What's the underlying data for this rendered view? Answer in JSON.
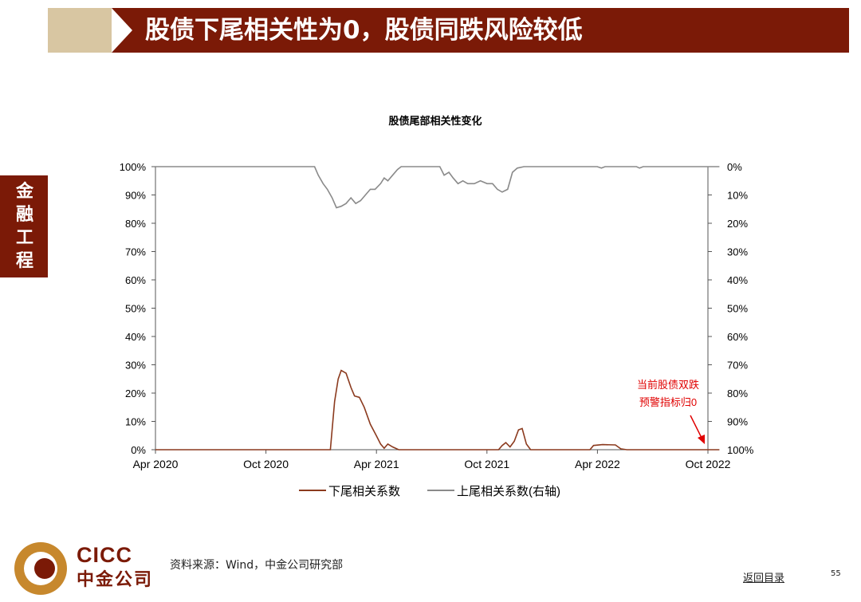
{
  "header": {
    "title": "股债下尾相关性为0，股债同跌风险较低"
  },
  "sidebar": {
    "section": "金融工程"
  },
  "chart_data": {
    "type": "line",
    "title": "股债尾部相关性变化",
    "x_ticks": [
      "Apr 2020",
      "Oct 2020",
      "Apr 2021",
      "Oct 2021",
      "Apr 2022",
      "Oct 2022"
    ],
    "x_range": [
      "2020-04",
      "2022-10"
    ],
    "left_axis": {
      "ticks": [
        "100%",
        "90%",
        "80%",
        "70%",
        "60%",
        "50%",
        "40%",
        "30%",
        "20%",
        "10%",
        "0%"
      ],
      "ylim": [
        0,
        100
      ]
    },
    "right_axis": {
      "ticks": [
        "0%",
        "10%",
        "20%",
        "30%",
        "40%",
        "50%",
        "60%",
        "70%",
        "80%",
        "90%",
        "100%"
      ],
      "ylim": [
        100,
        0
      ],
      "inverted": true
    },
    "legend_position": "bottom",
    "series": [
      {
        "name": "下尾相关系数",
        "axis": "left",
        "color": "#8b3a1e",
        "points": [
          [
            "2020-04-01",
            0
          ],
          [
            "2021-01-15",
            0
          ],
          [
            "2021-01-22",
            17
          ],
          [
            "2021-01-28",
            25
          ],
          [
            "2021-02-02",
            28
          ],
          [
            "2021-02-10",
            27
          ],
          [
            "2021-02-18",
            22
          ],
          [
            "2021-02-24",
            19
          ],
          [
            "2021-03-04",
            18.5
          ],
          [
            "2021-03-12",
            15
          ],
          [
            "2021-03-22",
            9
          ],
          [
            "2021-04-01",
            5
          ],
          [
            "2021-04-08",
            2
          ],
          [
            "2021-04-14",
            0.5
          ],
          [
            "2021-04-20",
            2
          ],
          [
            "2021-04-28",
            1
          ],
          [
            "2021-05-08",
            0
          ],
          [
            "2021-10-20",
            0
          ],
          [
            "2021-10-26",
            1.5
          ],
          [
            "2021-11-01",
            2.5
          ],
          [
            "2021-11-08",
            1
          ],
          [
            "2021-11-15",
            3
          ],
          [
            "2021-11-22",
            7
          ],
          [
            "2021-11-28",
            7.5
          ],
          [
            "2021-12-05",
            2
          ],
          [
            "2021-12-12",
            0
          ],
          [
            "2022-03-20",
            0
          ],
          [
            "2022-03-26",
            1.5
          ],
          [
            "2022-04-10",
            1.8
          ],
          [
            "2022-05-01",
            1.7
          ],
          [
            "2022-05-10",
            0.3
          ],
          [
            "2022-05-20",
            0
          ],
          [
            "2022-10-20",
            0
          ]
        ]
      },
      {
        "name": "上尾相关系数(右轴)",
        "axis": "right",
        "color": "#8a8a8a",
        "points": [
          [
            "2020-04-01",
            0
          ],
          [
            "2020-12-20",
            0
          ],
          [
            "2020-12-26",
            3
          ],
          [
            "2021-01-03",
            6
          ],
          [
            "2021-01-10",
            8
          ],
          [
            "2021-01-18",
            11
          ],
          [
            "2021-01-25",
            14.5
          ],
          [
            "2021-02-02",
            14
          ],
          [
            "2021-02-10",
            13
          ],
          [
            "2021-02-18",
            11
          ],
          [
            "2021-02-26",
            13
          ],
          [
            "2021-03-06",
            12
          ],
          [
            "2021-03-14",
            10
          ],
          [
            "2021-03-22",
            8
          ],
          [
            "2021-03-30",
            8
          ],
          [
            "2021-04-08",
            6
          ],
          [
            "2021-04-14",
            4
          ],
          [
            "2021-04-20",
            5
          ],
          [
            "2021-04-28",
            3
          ],
          [
            "2021-05-06",
            1
          ],
          [
            "2021-05-12",
            0
          ],
          [
            "2021-07-15",
            0
          ],
          [
            "2021-07-22",
            3
          ],
          [
            "2021-07-30",
            2
          ],
          [
            "2021-08-06",
            4
          ],
          [
            "2021-08-14",
            6
          ],
          [
            "2021-08-22",
            5
          ],
          [
            "2021-08-30",
            6
          ],
          [
            "2021-09-10",
            6
          ],
          [
            "2021-09-20",
            5
          ],
          [
            "2021-10-01",
            6
          ],
          [
            "2021-10-10",
            6
          ],
          [
            "2021-10-18",
            8
          ],
          [
            "2021-10-26",
            9
          ],
          [
            "2021-11-04",
            8
          ],
          [
            "2021-11-12",
            2
          ],
          [
            "2021-11-20",
            0.5
          ],
          [
            "2021-12-01",
            0
          ],
          [
            "2022-04-01",
            0
          ],
          [
            "2022-04-08",
            0.5
          ],
          [
            "2022-04-14",
            0
          ],
          [
            "2022-06-05",
            0
          ],
          [
            "2022-06-10",
            0.5
          ],
          [
            "2022-06-16",
            0
          ],
          [
            "2022-10-20",
            0
          ]
        ]
      }
    ],
    "annotation": {
      "line1": "当前股债双跌",
      "line2": "预警指标归0",
      "color": "#e00000"
    }
  },
  "footer": {
    "logo_en": "CICC",
    "logo_cn": "中金公司",
    "source": "资料来源：Wind，中金公司研究部",
    "back_link": "返回目录",
    "page_number": "55"
  }
}
